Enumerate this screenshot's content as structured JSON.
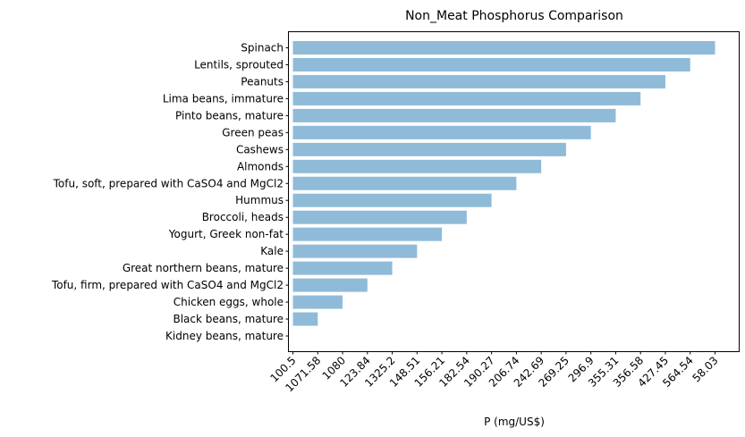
{
  "chart_data": {
    "type": "bar",
    "orientation": "horizontal",
    "title": "Non_Meat Phosphorus Comparison",
    "xlabel": "P (mg/US$)",
    "ylabel": "",
    "categories": [
      "Kidney beans, mature",
      "Black beans, mature",
      "Chicken eggs, whole",
      "Tofu, firm, prepared with CaSO4 and MgCl2",
      "Great northern beans, mature",
      "Kale",
      "Yogurt, Greek non-fat",
      "Broccoli, heads",
      "Hummus",
      "Tofu, soft, prepared with CaSO4 and MgCl2",
      "Almonds",
      "Cashews",
      "Green peas",
      "Pinto beans, mature",
      "Lima beans, immature",
      "Peanuts",
      "Lentils, sprouted",
      "Spinach"
    ],
    "values": [
      0,
      1,
      2,
      3,
      4,
      5,
      6,
      7,
      8,
      9,
      10,
      11,
      12,
      13,
      14,
      15,
      16,
      17
    ],
    "xticks": [
      "100.5",
      "1071.58",
      "1080",
      "123.84",
      "1325.2",
      "148.51",
      "156.21",
      "182.54",
      "190.27",
      "206.74",
      "242.69",
      "269.25",
      "296.9",
      "355.31",
      "356.58",
      "427.45",
      "564.54",
      "58.03"
    ],
    "xlim": [
      0,
      17
    ],
    "bar_color": "#8fbbd9",
    "grid": false
  }
}
